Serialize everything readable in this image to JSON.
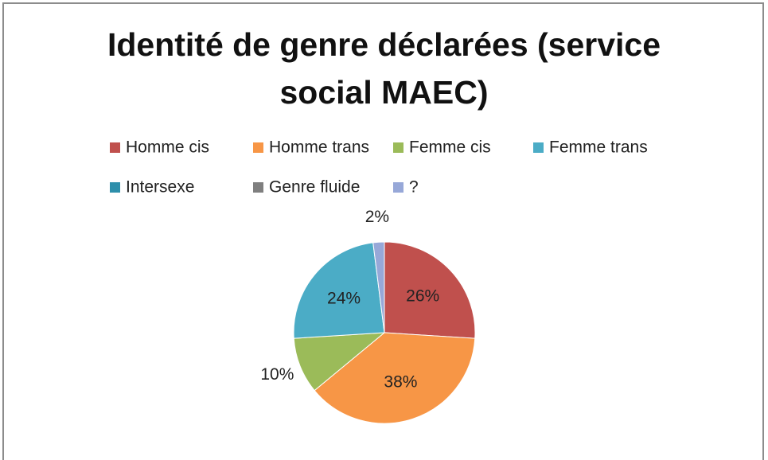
{
  "chart_data": {
    "type": "pie",
    "title": "Identité de genre déclarées (service social MAEC)",
    "categories": [
      "Homme cis",
      "Homme trans",
      "Femme cis",
      "Femme trans",
      "Intersexe",
      "Genre fluide",
      "?"
    ],
    "values": [
      26,
      38,
      10,
      24,
      0,
      0,
      2
    ],
    "value_labels": [
      "26%",
      "38%",
      "10%",
      "24%",
      null,
      null,
      "2%"
    ],
    "colors": [
      "#c0504d",
      "#f79646",
      "#9bbb59",
      "#4bacc6",
      "#2e8fab",
      "#7f7f7f",
      "#97a8d8"
    ],
    "legend": "top"
  }
}
